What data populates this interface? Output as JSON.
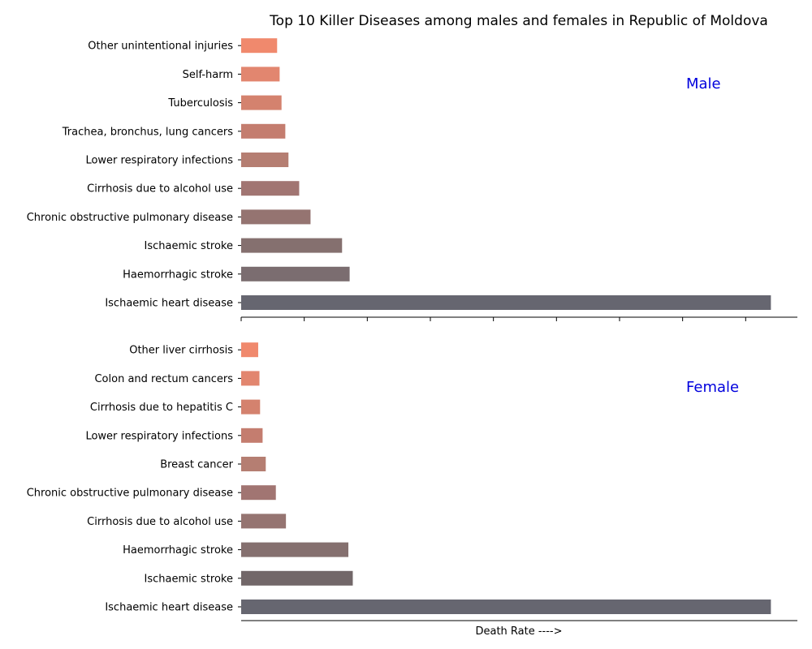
{
  "chart_data": [
    {
      "type": "bar",
      "orientation": "horizontal",
      "title": "Top 10 Killer Diseases among males and females in Republic of Moldova",
      "panel_label": "Male",
      "xlabel": "",
      "ylabel": "",
      "x_tick_labels_visible": false,
      "grid": false,
      "categories": [
        "Ischaemic heart disease",
        "Haemorrhagic stroke",
        "Ischaemic stroke",
        "Chronic obstructive pulmonary disease",
        "Cirrhosis due to alcohol use",
        "Lower respiratory infections",
        "Trachea, bronchus, lung cancers",
        "Tuberculosis",
        "Self-harm",
        "Other unintentional injuries"
      ],
      "values": [
        840,
        172,
        160,
        110,
        92,
        75,
        70,
        64,
        61,
        57
      ],
      "xlim": [
        0,
        882
      ],
      "colors": [
        "#666670",
        "#7b6d70",
        "#85706f",
        "#957471",
        "#a17572",
        "#b57e72",
        "#c47d6f",
        "#d4826e",
        "#e2866f",
        "#f0896d"
      ]
    },
    {
      "type": "bar",
      "orientation": "horizontal",
      "title": "",
      "panel_label": "Female",
      "xlabel": "Death Rate ---->",
      "ylabel": "",
      "x_tick_labels_visible": false,
      "grid": false,
      "categories": [
        "Ischaemic heart disease",
        "Ischaemic stroke",
        "Haemorrhagic stroke",
        "Cirrhosis due to alcohol use",
        "Chronic obstructive pulmonary disease",
        "Breast cancer",
        "Lower respiratory infections",
        "Cirrhosis due to hepatitis C",
        "Colon and rectum cancers",
        "Other liver cirrhosis"
      ],
      "values": [
        840,
        177,
        170,
        71,
        55,
        39,
        34,
        30,
        29,
        27
      ],
      "xlim": [
        0,
        882
      ],
      "colors": [
        "#666670",
        "#726769",
        "#85706f",
        "#957471",
        "#a17572",
        "#b57e72",
        "#c47d6f",
        "#d4826e",
        "#e2866f",
        "#f0896d"
      ]
    }
  ]
}
